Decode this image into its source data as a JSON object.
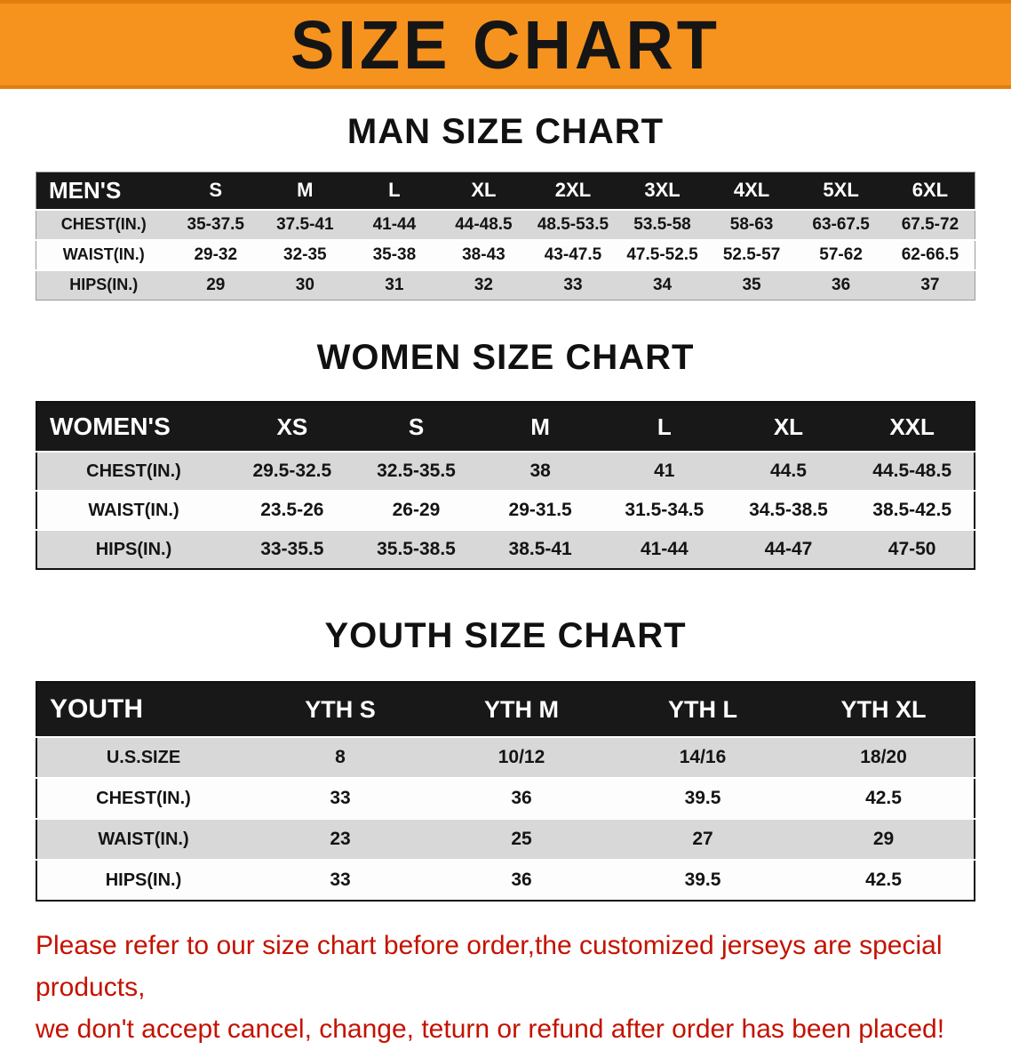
{
  "banner": {
    "title": "SIZE CHART"
  },
  "sections": [
    {
      "heading": "MAN SIZE CHART",
      "table": {
        "title": "MEN'S",
        "header": [
          "MEN'S",
          "S",
          "M",
          "L",
          "XL",
          "2XL",
          "3XL",
          "4XL",
          "5XL",
          "6XL"
        ],
        "rows": [
          {
            "label": "CHEST(IN.)",
            "values": [
              "35-37.5",
              "37.5-41",
              "41-44",
              "44-48.5",
              "48.5-53.5",
              "53.5-58",
              "58-63",
              "63-67.5",
              "67.5-72"
            ]
          },
          {
            "label": "WAIST(IN.)",
            "values": [
              "29-32",
              "32-35",
              "35-38",
              "38-43",
              "43-47.5",
              "47.5-52.5",
              "52.5-57",
              "57-62",
              "62-66.5"
            ]
          },
          {
            "label": "HIPS(IN.)",
            "values": [
              "29",
              "30",
              "31",
              "32",
              "33",
              "34",
              "35",
              "36",
              "37"
            ]
          }
        ]
      }
    },
    {
      "heading": "WOMEN SIZE CHART",
      "table": {
        "title": "WOMEN'S",
        "header": [
          "WOMEN'S",
          "XS",
          "S",
          "M",
          "L",
          "XL",
          "XXL"
        ],
        "rows": [
          {
            "label": "CHEST(IN.)",
            "values": [
              "29.5-32.5",
              "32.5-35.5",
              "38",
              "41",
              "44.5",
              "44.5-48.5"
            ]
          },
          {
            "label": "WAIST(IN.)",
            "values": [
              "23.5-26",
              "26-29",
              "29-31.5",
              "31.5-34.5",
              "34.5-38.5",
              "38.5-42.5"
            ]
          },
          {
            "label": "HIPS(IN.)",
            "values": [
              "33-35.5",
              "35.5-38.5",
              "38.5-41",
              "41-44",
              "44-47",
              "47-50"
            ]
          }
        ]
      }
    },
    {
      "heading": "YOUTH SIZE CHART",
      "table": {
        "title": "YOUTH",
        "header": [
          "YOUTH",
          "YTH S",
          "YTH M",
          "YTH L",
          "YTH XL"
        ],
        "rows": [
          {
            "label": "U.S.SIZE",
            "values": [
              "8",
              "10/12",
              "14/16",
              "18/20"
            ]
          },
          {
            "label": "CHEST(IN.)",
            "values": [
              "33",
              "36",
              "39.5",
              "42.5"
            ]
          },
          {
            "label": "WAIST(IN.)",
            "values": [
              "23",
              "25",
              "27",
              "29"
            ]
          },
          {
            "label": "HIPS(IN.)",
            "values": [
              "33",
              "36",
              "39.5",
              "42.5"
            ]
          }
        ]
      }
    }
  ],
  "footer": {
    "line1": "Please refer to our size chart before order,the customized jerseys are special products,",
    "line2": "we don't accept cancel, change, teturn or refund after order has been placed!"
  },
  "colors": {
    "banner_orange": "#f6921e",
    "table_header_black": "#181818",
    "row_gray": "#d8d8d8",
    "row_white": "#fdfdfd",
    "footer_red": "#c41200"
  }
}
